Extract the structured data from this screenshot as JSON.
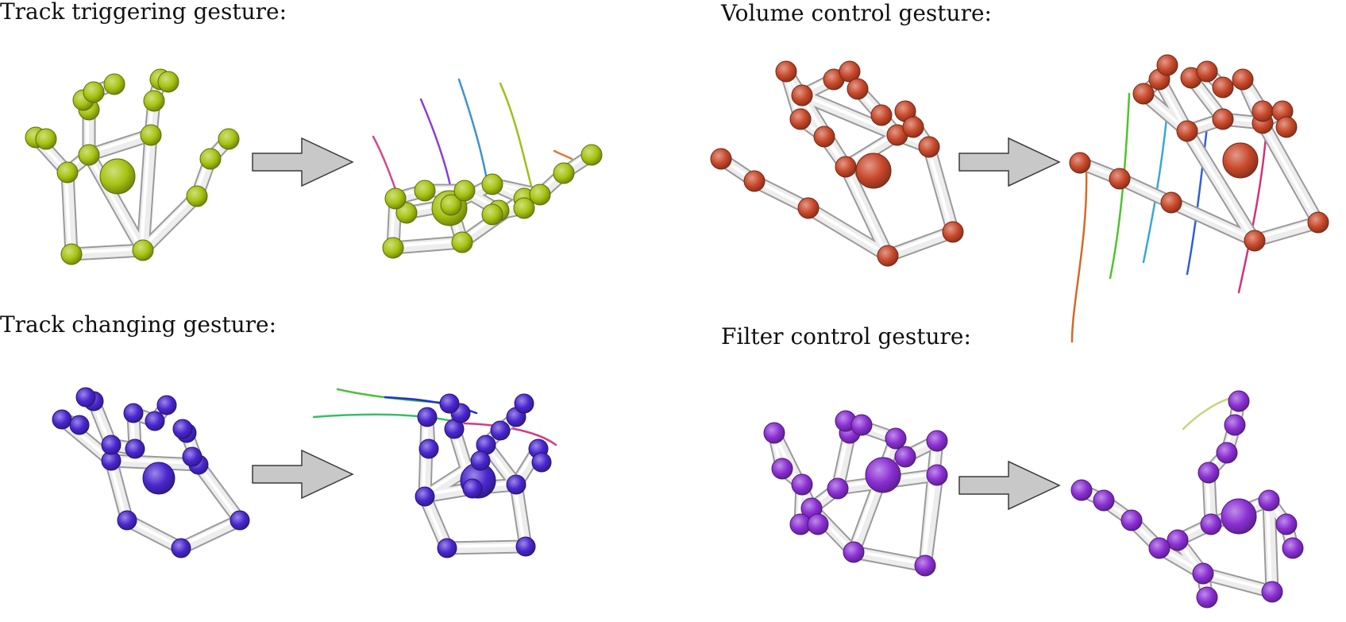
{
  "panels": [
    {
      "id": "track-triggering",
      "title": "Track triggering gesture:",
      "joint_color": "#a7c412",
      "trail_colors": [
        "#d04a8c",
        "#8a3fd6",
        "#3e92d0",
        "#9ac21a",
        "#e0773a"
      ]
    },
    {
      "id": "volume-control",
      "title": "Volume control gesture:",
      "joint_color": "#c9482a",
      "trail_colors": [
        "#d46a24",
        "#4ec42a",
        "#3aa6d6",
        "#2f5fd2",
        "#d1337a"
      ]
    },
    {
      "id": "track-changing",
      "title": "Track changing gesture:",
      "joint_color": "#4a26d0",
      "trail_colors": [
        "#4cc23a",
        "#2230d6",
        "#33c06a",
        "#d23c86"
      ]
    },
    {
      "id": "filter-control",
      "title": "Filter control gesture:",
      "joint_color": "#8b2fd4",
      "trail_colors": [
        "#c6d67a",
        "#e0874a"
      ]
    }
  ]
}
